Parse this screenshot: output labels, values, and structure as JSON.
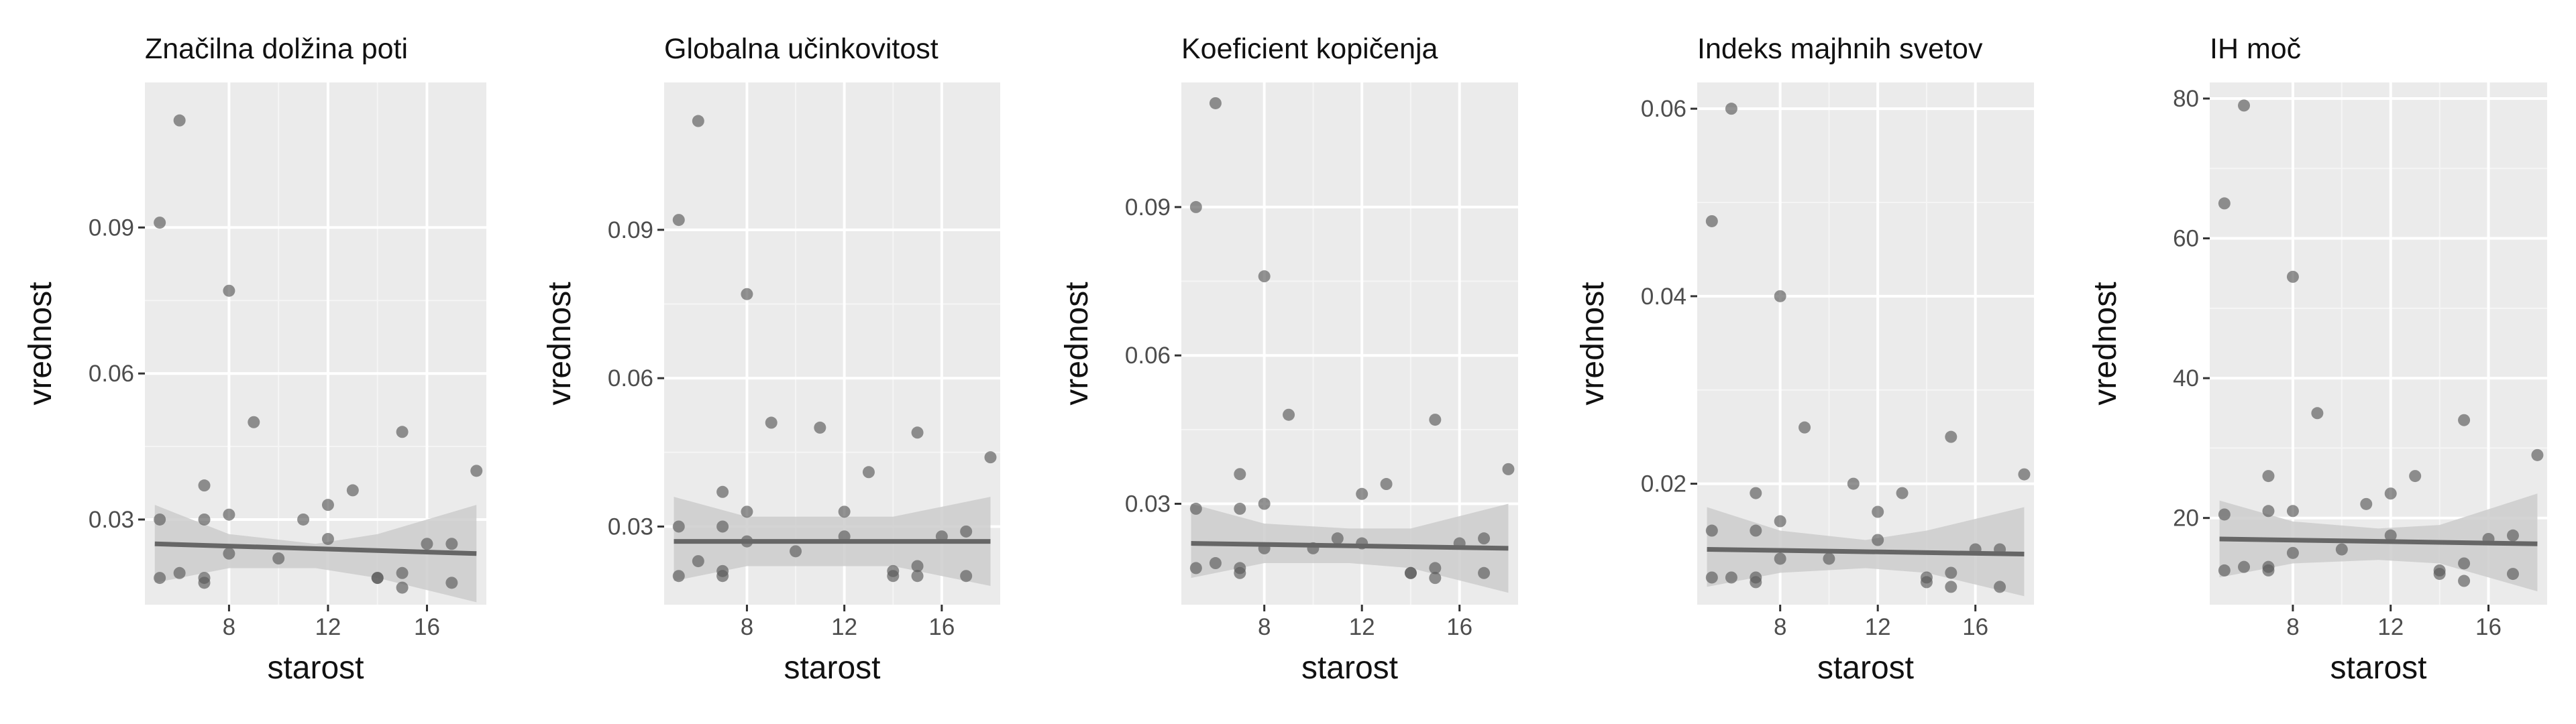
{
  "chart_data": [
    {
      "type": "scatter",
      "title": "Značilna dolžina poti",
      "xlabel": "starost",
      "ylabel": "vrednost",
      "xlim": [
        4.6,
        18.4
      ],
      "ylim": [
        0.0125,
        0.1198
      ],
      "xticks": [
        8,
        12,
        16
      ],
      "xtick_labels": [
        "8",
        "12",
        "16"
      ],
      "yticks": [
        0.03,
        0.06,
        0.09
      ],
      "ytick_labels": [
        "0.03",
        "0.06",
        "0.09"
      ],
      "grid": true,
      "points": [
        [
          5.2,
          0.091
        ],
        [
          5.2,
          0.03
        ],
        [
          5.2,
          0.018
        ],
        [
          6.0,
          0.112
        ],
        [
          6.0,
          0.019
        ],
        [
          7.0,
          0.037
        ],
        [
          7.0,
          0.03
        ],
        [
          7.0,
          0.018
        ],
        [
          7.0,
          0.017
        ],
        [
          8.0,
          0.077
        ],
        [
          8.0,
          0.031
        ],
        [
          8.0,
          0.023
        ],
        [
          9.0,
          0.05
        ],
        [
          10.0,
          0.022
        ],
        [
          11.0,
          0.03
        ],
        [
          12.0,
          0.033
        ],
        [
          12.0,
          0.026
        ],
        [
          13.0,
          0.036
        ],
        [
          14.0,
          0.018
        ],
        [
          14.0,
          0.018
        ],
        [
          15.0,
          0.048
        ],
        [
          15.0,
          0.019
        ],
        [
          15.0,
          0.016
        ],
        [
          16.0,
          0.025
        ],
        [
          17.0,
          0.025
        ],
        [
          17.0,
          0.017
        ],
        [
          18.0,
          0.04
        ]
      ],
      "trend": {
        "x": [
          5,
          18
        ],
        "y": [
          0.025,
          0.023
        ]
      },
      "band": {
        "x": [
          5,
          8,
          11.5,
          14,
          18
        ],
        "lower": [
          0.017,
          0.02,
          0.02,
          0.018,
          0.013
        ],
        "upper": [
          0.033,
          0.027,
          0.025,
          0.027,
          0.033
        ]
      }
    },
    {
      "type": "scatter",
      "title": "Globalna učinkovitost",
      "xlabel": "starost",
      "ylabel": "vrednost",
      "xlim": [
        4.6,
        18.4
      ],
      "ylim": [
        0.0142,
        0.1198
      ],
      "xticks": [
        8,
        12,
        16
      ],
      "xtick_labels": [
        "8",
        "12",
        "16"
      ],
      "yticks": [
        0.03,
        0.06,
        0.09
      ],
      "ytick_labels": [
        "0.03",
        "0.06",
        "0.09"
      ],
      "grid": true,
      "points": [
        [
          5.2,
          0.092
        ],
        [
          5.2,
          0.03
        ],
        [
          5.2,
          0.02
        ],
        [
          6.0,
          0.112
        ],
        [
          6.0,
          0.023
        ],
        [
          7.0,
          0.037
        ],
        [
          7.0,
          0.03
        ],
        [
          7.0,
          0.021
        ],
        [
          7.0,
          0.02
        ],
        [
          8.0,
          0.077
        ],
        [
          8.0,
          0.033
        ],
        [
          8.0,
          0.027
        ],
        [
          9.0,
          0.051
        ],
        [
          10.0,
          0.025
        ],
        [
          11.0,
          0.05
        ],
        [
          12.0,
          0.033
        ],
        [
          12.0,
          0.028
        ],
        [
          13.0,
          0.041
        ],
        [
          14.0,
          0.021
        ],
        [
          14.0,
          0.02
        ],
        [
          15.0,
          0.049
        ],
        [
          15.0,
          0.022
        ],
        [
          15.0,
          0.02
        ],
        [
          16.0,
          0.028
        ],
        [
          17.0,
          0.029
        ],
        [
          17.0,
          0.02
        ],
        [
          18.0,
          0.044
        ]
      ],
      "trend": {
        "x": [
          5,
          18
        ],
        "y": [
          0.027,
          0.027
        ]
      },
      "band": {
        "x": [
          5,
          8,
          11.5,
          14,
          18
        ],
        "lower": [
          0.019,
          0.022,
          0.022,
          0.022,
          0.018
        ],
        "upper": [
          0.036,
          0.032,
          0.032,
          0.032,
          0.036
        ]
      }
    },
    {
      "type": "scatter",
      "title": "Koeficient kopičenja",
      "xlabel": "starost",
      "ylabel": "vrednost",
      "xlim": [
        4.6,
        18.4
      ],
      "ylim": [
        0.0096,
        0.1152
      ],
      "xticks": [
        8,
        12,
        16
      ],
      "xtick_labels": [
        "8",
        "12",
        "16"
      ],
      "yticks": [
        0.03,
        0.06,
        0.09
      ],
      "ytick_labels": [
        "0.03",
        "0.06",
        "0.09"
      ],
      "grid": true,
      "points": [
        [
          5.2,
          0.09
        ],
        [
          5.2,
          0.029
        ],
        [
          5.2,
          0.017
        ],
        [
          6.0,
          0.111
        ],
        [
          6.0,
          0.018
        ],
        [
          7.0,
          0.036
        ],
        [
          7.0,
          0.029
        ],
        [
          7.0,
          0.017
        ],
        [
          7.0,
          0.016
        ],
        [
          8.0,
          0.076
        ],
        [
          8.0,
          0.03
        ],
        [
          8.0,
          0.021
        ],
        [
          9.0,
          0.048
        ],
        [
          10.0,
          0.021
        ],
        [
          11.0,
          0.023
        ],
        [
          12.0,
          0.032
        ],
        [
          12.0,
          0.022
        ],
        [
          13.0,
          0.034
        ],
        [
          14.0,
          0.016
        ],
        [
          14.0,
          0.016
        ],
        [
          15.0,
          0.047
        ],
        [
          15.0,
          0.017
        ],
        [
          15.0,
          0.015
        ],
        [
          16.0,
          0.022
        ],
        [
          17.0,
          0.023
        ],
        [
          17.0,
          0.016
        ],
        [
          18.0,
          0.037
        ]
      ],
      "trend": {
        "x": [
          5,
          18
        ],
        "y": [
          0.022,
          0.021
        ]
      },
      "band": {
        "x": [
          5,
          8,
          11.5,
          14,
          18
        ],
        "lower": [
          0.015,
          0.018,
          0.018,
          0.017,
          0.012
        ],
        "upper": [
          0.03,
          0.026,
          0.025,
          0.025,
          0.03
        ]
      }
    },
    {
      "type": "scatter",
      "title": "Indeks majhnih svetov",
      "xlabel": "starost",
      "ylabel": "vrednost",
      "xlim": [
        4.6,
        18.4
      ],
      "ylim": [
        0.0071,
        0.0628
      ],
      "xticks": [
        8,
        12,
        16
      ],
      "xtick_labels": [
        "8",
        "12",
        "16"
      ],
      "yticks": [
        0.02,
        0.04,
        0.06
      ],
      "ytick_labels": [
        "0.02",
        "0.04",
        "0.06"
      ],
      "grid": true,
      "points": [
        [
          5.2,
          0.048
        ],
        [
          5.2,
          0.015
        ],
        [
          5.2,
          0.01
        ],
        [
          6.0,
          0.06
        ],
        [
          6.0,
          0.01
        ],
        [
          7.0,
          0.019
        ],
        [
          7.0,
          0.015
        ],
        [
          7.0,
          0.01
        ],
        [
          7.0,
          0.0095
        ],
        [
          8.0,
          0.04
        ],
        [
          8.0,
          0.016
        ],
        [
          8.0,
          0.012
        ],
        [
          9.0,
          0.026
        ],
        [
          10.0,
          0.012
        ],
        [
          11.0,
          0.02
        ],
        [
          12.0,
          0.017
        ],
        [
          12.0,
          0.014
        ],
        [
          13.0,
          0.019
        ],
        [
          14.0,
          0.01
        ],
        [
          14.0,
          0.0095
        ],
        [
          15.0,
          0.025
        ],
        [
          15.0,
          0.0105
        ],
        [
          15.0,
          0.009
        ],
        [
          16.0,
          0.013
        ],
        [
          17.0,
          0.013
        ],
        [
          17.0,
          0.009
        ],
        [
          18.0,
          0.021
        ]
      ],
      "trend": {
        "x": [
          5,
          18
        ],
        "y": [
          0.013,
          0.0125
        ]
      },
      "band": {
        "x": [
          5,
          8,
          11.5,
          14,
          18
        ],
        "lower": [
          0.009,
          0.0105,
          0.011,
          0.0105,
          0.008
        ],
        "upper": [
          0.0175,
          0.015,
          0.014,
          0.015,
          0.0175
        ]
      }
    },
    {
      "type": "scatter",
      "title": "IH moč",
      "xlabel": "starost",
      "ylabel": "vrednost",
      "xlim": [
        4.6,
        18.4
      ],
      "ylim": [
        7.6,
        82.3
      ],
      "xticks": [
        8,
        12,
        16
      ],
      "xtick_labels": [
        "8",
        "12",
        "16"
      ],
      "yticks": [
        20,
        40,
        60,
        80
      ],
      "ytick_labels": [
        "20",
        "40",
        "60",
        "80"
      ],
      "grid": true,
      "points": [
        [
          5.2,
          65
        ],
        [
          5.2,
          20.5
        ],
        [
          5.2,
          12.5
        ],
        [
          6.0,
          79
        ],
        [
          6.0,
          13
        ],
        [
          7.0,
          26
        ],
        [
          7.0,
          21
        ],
        [
          7.0,
          13
        ],
        [
          7.0,
          12.5
        ],
        [
          8.0,
          54.5
        ],
        [
          8.0,
          21
        ],
        [
          8.0,
          15
        ],
        [
          9.0,
          35
        ],
        [
          10.0,
          15.5
        ],
        [
          11.0,
          22
        ],
        [
          12.0,
          23.5
        ],
        [
          12.0,
          17.5
        ],
        [
          13.0,
          26
        ],
        [
          14.0,
          12.5
        ],
        [
          14.0,
          12
        ],
        [
          15.0,
          34
        ],
        [
          15.0,
          13.5
        ],
        [
          15.0,
          11
        ],
        [
          16.0,
          17
        ],
        [
          17.0,
          17.5
        ],
        [
          17.0,
          12
        ],
        [
          18.0,
          29
        ]
      ],
      "trend": {
        "x": [
          5,
          18
        ],
        "y": [
          17.0,
          16.3
        ]
      },
      "band": {
        "x": [
          5,
          8,
          11.5,
          14,
          18
        ],
        "lower": [
          11.5,
          13.5,
          14.0,
          13.5,
          9.5
        ],
        "upper": [
          22.5,
          19.5,
          18.5,
          19.0,
          23.5
        ]
      }
    }
  ],
  "colors": {
    "panel_background": "#ebebeb",
    "grid_major": "#ffffff",
    "grid_minor": "#f5f5f5",
    "points": "#595959",
    "trend_line": "#666666",
    "confidence_band": "#cccccc",
    "tick_text": "#4d4d4d",
    "title_text": "#111111"
  }
}
